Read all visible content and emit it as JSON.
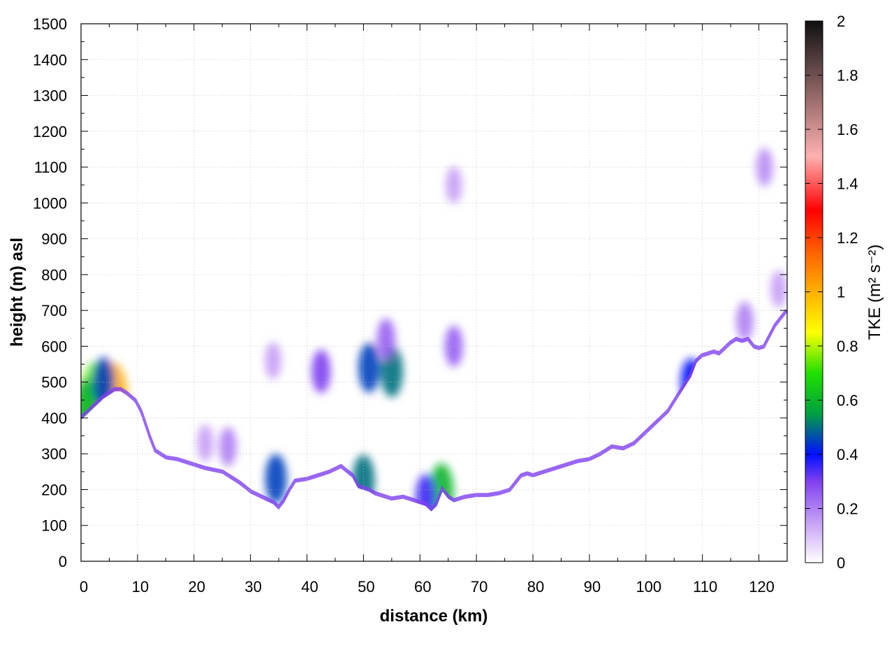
{
  "chart_data": {
    "type": "heatmap",
    "title": "",
    "xlabel": "distance (km)",
    "ylabel": "height (m) asl",
    "xlim": [
      0,
      125
    ],
    "ylim": [
      0,
      1500
    ],
    "x_ticks": [
      0,
      10,
      20,
      30,
      40,
      50,
      60,
      70,
      80,
      90,
      100,
      110,
      120
    ],
    "y_ticks": [
      0,
      100,
      200,
      300,
      400,
      500,
      600,
      700,
      800,
      900,
      1000,
      1100,
      1200,
      1300,
      1400,
      1500
    ],
    "grid": true,
    "colorbar": {
      "label": "TKE (m² s⁻²)",
      "range": [
        0,
        2
      ],
      "ticks": [
        "0",
        "0.2",
        "0.4",
        "0.6",
        "0.8",
        "1",
        "1.2",
        "1.4",
        "1.6",
        "1.8",
        "2"
      ],
      "colormap": [
        {
          "v": 0.0,
          "c": "#ffffff"
        },
        {
          "v": 0.15,
          "c": "#c6a0f5"
        },
        {
          "v": 0.3,
          "c": "#8040f0"
        },
        {
          "v": 0.4,
          "c": "#0010ff"
        },
        {
          "v": 0.55,
          "c": "#00a040"
        },
        {
          "v": 0.7,
          "c": "#20e000"
        },
        {
          "v": 0.85,
          "c": "#ffff00"
        },
        {
          "v": 1.0,
          "c": "#ffb000"
        },
        {
          "v": 1.15,
          "c": "#ff6000"
        },
        {
          "v": 1.3,
          "c": "#ff0000"
        },
        {
          "v": 1.5,
          "c": "#ffb0b0"
        },
        {
          "v": 1.7,
          "c": "#a07070"
        },
        {
          "v": 2.0,
          "c": "#101010"
        }
      ]
    },
    "terrain": {
      "x": [
        0,
        2,
        4,
        6,
        7,
        8,
        9.5,
        10.5,
        12,
        13,
        15,
        17,
        20,
        22,
        25,
        28,
        30,
        32,
        34,
        35,
        36,
        37,
        38,
        40,
        42,
        44,
        46,
        48,
        49,
        50,
        51,
        52,
        53,
        55,
        57,
        59,
        60,
        61,
        62,
        63,
        64,
        65,
        66,
        68,
        70,
        72,
        74,
        76,
        78,
        79,
        80,
        82,
        84,
        86,
        88,
        90,
        92,
        94,
        96,
        98,
        100,
        102,
        104,
        106,
        108,
        109,
        110,
        111,
        112,
        113,
        114,
        115,
        116,
        117,
        118,
        119,
        120,
        121,
        122,
        123,
        124,
        125
      ],
      "height": [
        400,
        430,
        460,
        480,
        480,
        470,
        450,
        420,
        350,
        310,
        290,
        285,
        270,
        260,
        250,
        220,
        195,
        180,
        165,
        150,
        170,
        200,
        225,
        230,
        240,
        250,
        265,
        240,
        210,
        205,
        200,
        190,
        185,
        175,
        180,
        170,
        165,
        160,
        145,
        160,
        200,
        180,
        170,
        180,
        185,
        185,
        190,
        200,
        240,
        245,
        240,
        250,
        260,
        270,
        280,
        285,
        300,
        320,
        315,
        330,
        360,
        390,
        420,
        470,
        520,
        560,
        575,
        580,
        585,
        580,
        595,
        610,
        620,
        615,
        620,
        600,
        595,
        600,
        630,
        660,
        680,
        700
      ]
    },
    "hotspots": [
      {
        "x": 2.5,
        "y": 470,
        "v": 0.75
      },
      {
        "x": 5.5,
        "y": 455,
        "v": 1.0
      },
      {
        "x": 1.0,
        "y": 430,
        "v": 0.6
      },
      {
        "x": 4.0,
        "y": 500,
        "v": 0.45
      },
      {
        "x": 42.5,
        "y": 530,
        "v": 0.3
      },
      {
        "x": 51.0,
        "y": 540,
        "v": 0.45
      },
      {
        "x": 55.0,
        "y": 530,
        "v": 0.5
      },
      {
        "x": 54.0,
        "y": 620,
        "v": 0.25
      },
      {
        "x": 34.0,
        "y": 560,
        "v": 0.15
      },
      {
        "x": 26.0,
        "y": 320,
        "v": 0.2
      },
      {
        "x": 22.0,
        "y": 330,
        "v": 0.15
      },
      {
        "x": 34.5,
        "y": 230,
        "v": 0.45
      },
      {
        "x": 50.0,
        "y": 225,
        "v": 0.5
      },
      {
        "x": 63.8,
        "y": 195,
        "v": 0.6
      },
      {
        "x": 61.0,
        "y": 180,
        "v": 0.35
      },
      {
        "x": 66.0,
        "y": 1050,
        "v": 0.15
      },
      {
        "x": 66.0,
        "y": 600,
        "v": 0.25
      },
      {
        "x": 121.0,
        "y": 1100,
        "v": 0.18
      },
      {
        "x": 117.5,
        "y": 670,
        "v": 0.2
      },
      {
        "x": 123.5,
        "y": 760,
        "v": 0.15
      },
      {
        "x": 108.0,
        "y": 500,
        "v": 0.4
      }
    ]
  }
}
